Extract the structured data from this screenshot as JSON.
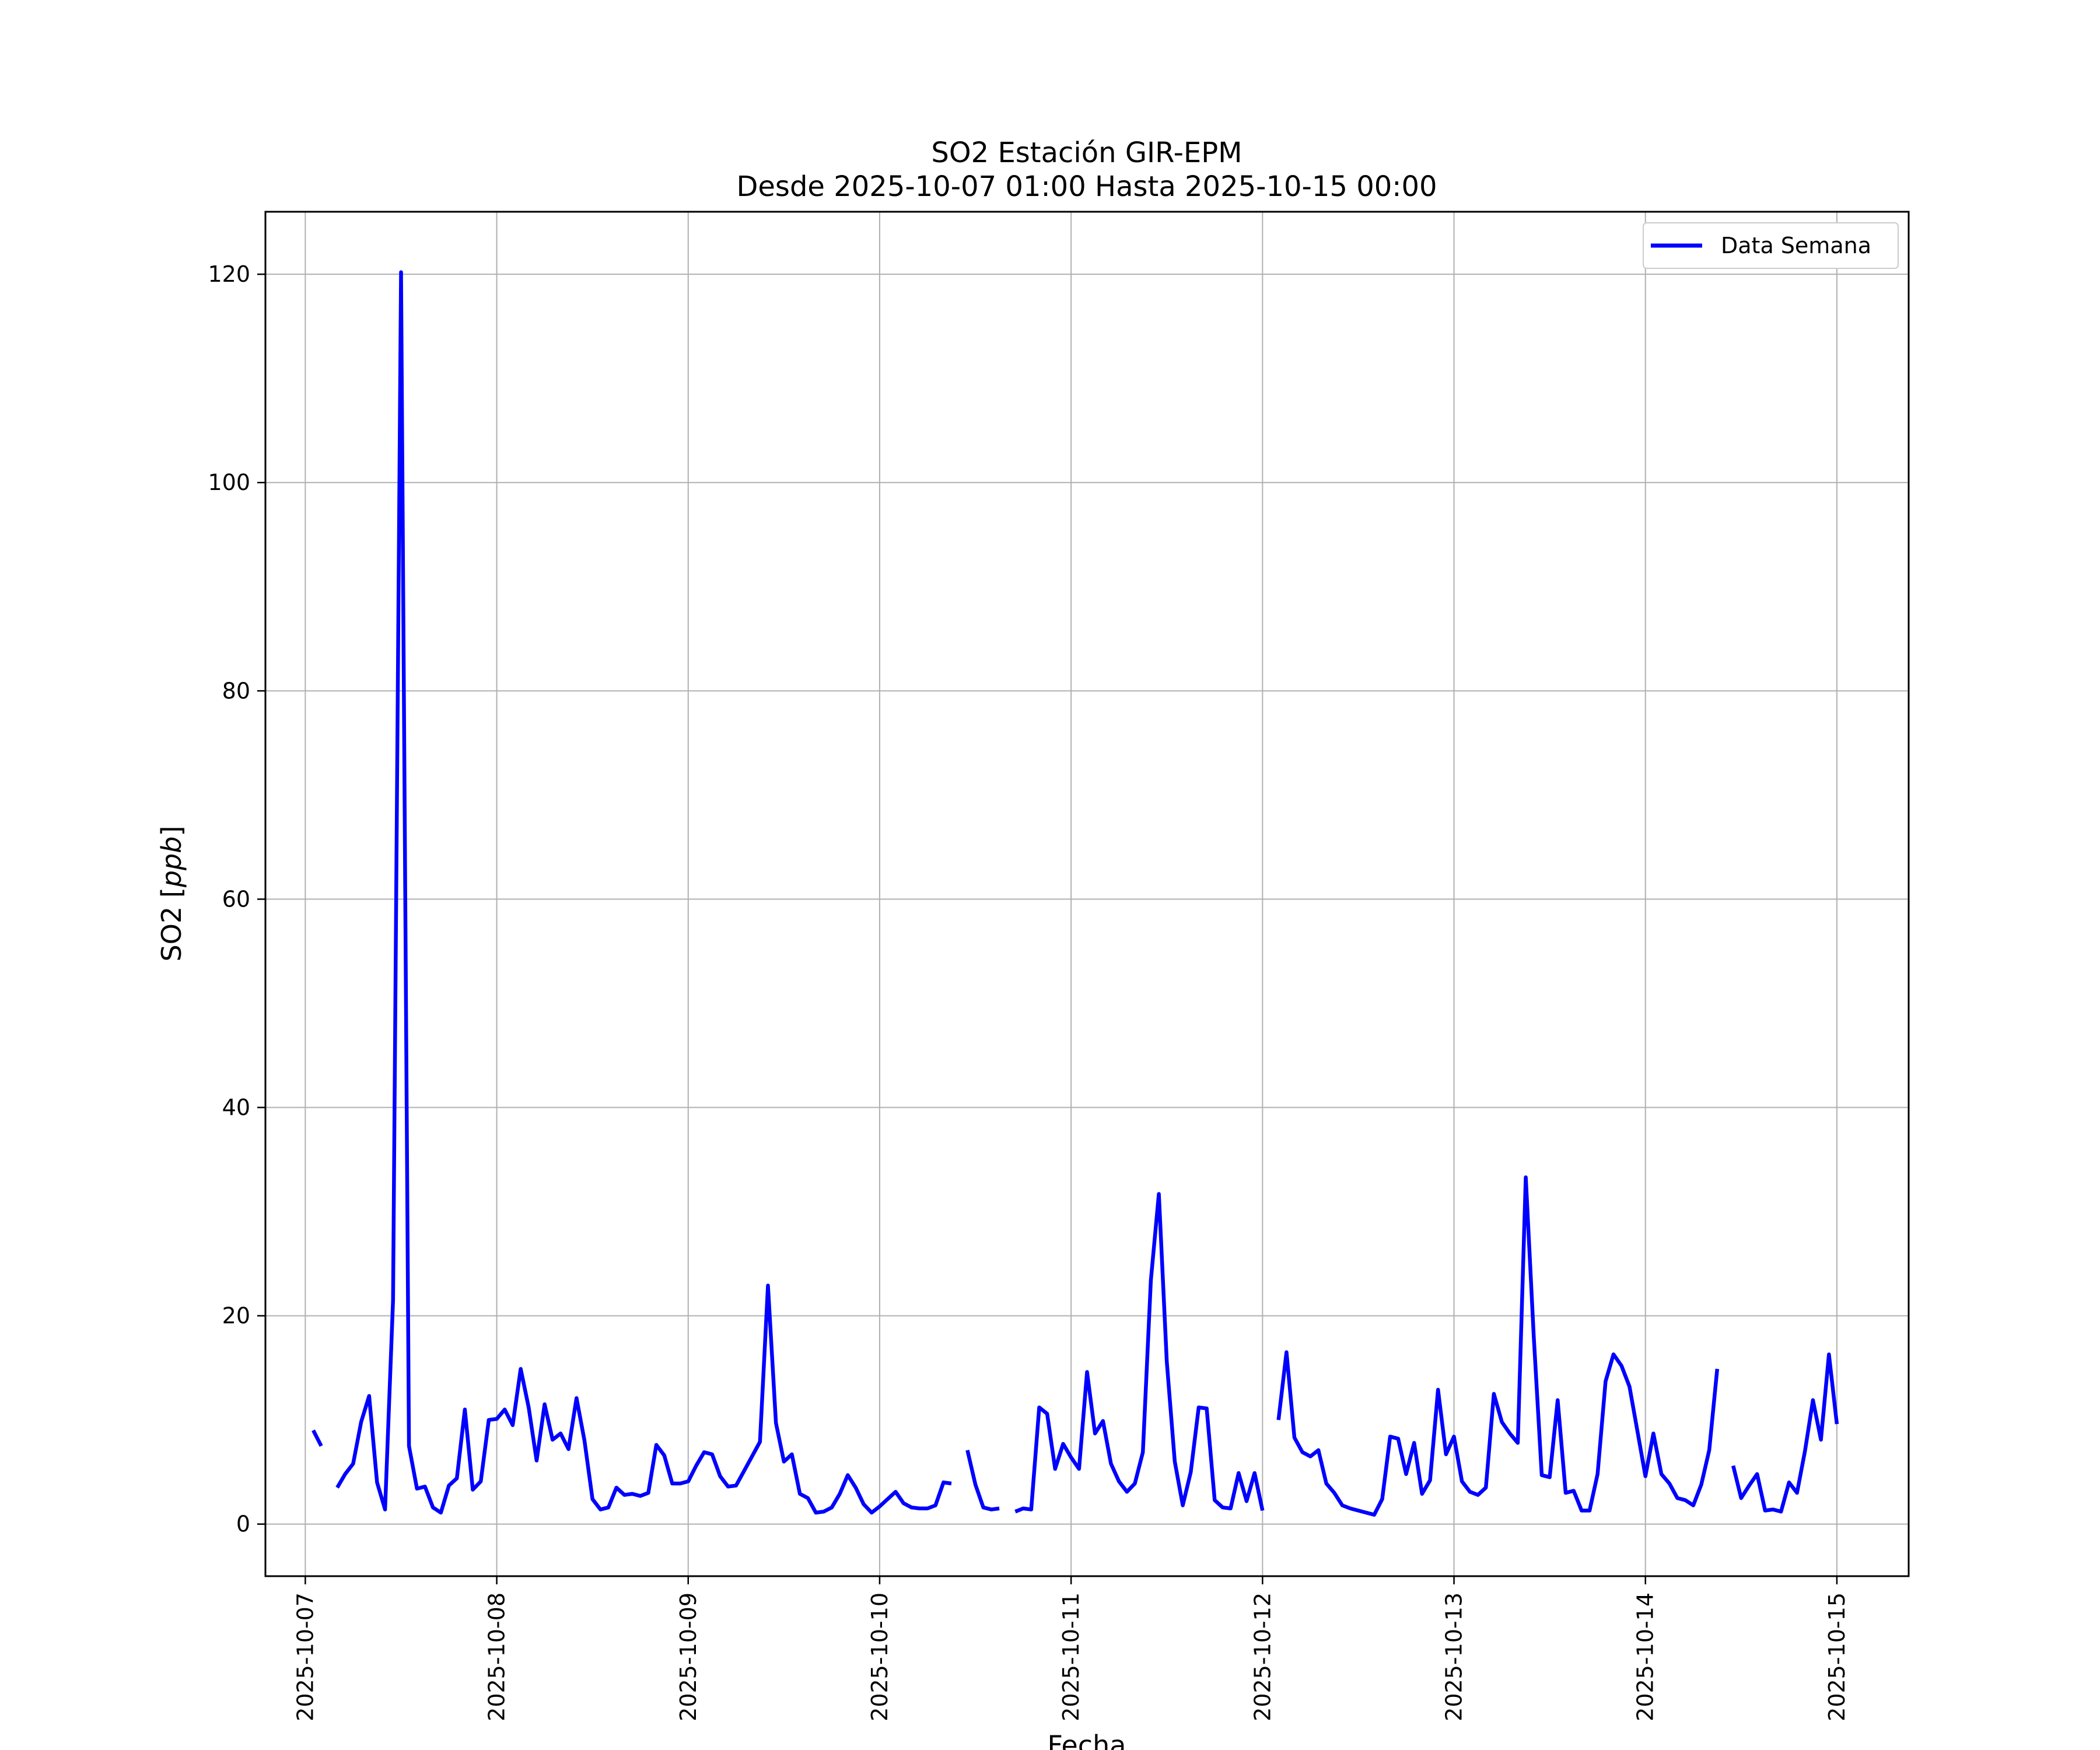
{
  "chart_data": {
    "type": "line",
    "title": "SO2 Estación GIR-EPM",
    "subtitle": "Desde 2025-10-07 01:00 Hasta 2025-10-15 00:00",
    "xlabel": "Fecha",
    "ylabel": "SO2 [ppb]",
    "ylabel_main": "SO2 [",
    "ylabel_unit": "ppb",
    "ylabel_close": "]",
    "x_ticks": [
      "2025-10-07",
      "2025-10-08",
      "2025-10-09",
      "2025-10-10",
      "2025-10-11",
      "2025-10-12",
      "2025-10-13",
      "2025-10-14",
      "2025-10-15"
    ],
    "y_ticks": [
      0,
      20,
      40,
      60,
      80,
      100,
      120
    ],
    "xlim": [
      "2025-10-06 19:00",
      "2025-10-15 09:00"
    ],
    "ylim": [
      -5,
      126
    ],
    "grid": true,
    "legend_position": "top-right",
    "line_color": "#0000ff",
    "series": [
      {
        "name": "Data Semana",
        "start": "2025-10-07 01:00",
        "interval_hours": 1,
        "values": [
          9.0,
          7.5,
          null,
          3.5,
          4.8,
          5.8,
          9.8,
          12.3,
          4.0,
          1.4,
          21.5,
          120.2,
          7.5,
          3.4,
          3.6,
          1.6,
          1.1,
          3.7,
          4.4,
          11.0,
          3.3,
          4.1,
          10.0,
          10.1,
          11.0,
          9.5,
          14.9,
          11.2,
          6.1,
          11.5,
          8.1,
          8.7,
          7.2,
          12.1,
          8.0,
          2.4,
          1.4,
          1.6,
          3.5,
          2.8,
          2.9,
          2.7,
          3.0,
          7.6,
          6.6,
          3.9,
          3.9,
          4.1,
          5.6,
          6.9,
          6.7,
          4.6,
          3.6,
          3.7,
          5.1,
          6.5,
          7.9,
          22.9,
          9.7,
          6.0,
          6.7,
          2.9,
          2.5,
          1.1,
          1.2,
          1.6,
          2.9,
          4.7,
          3.5,
          1.9,
          1.1,
          1.7,
          2.4,
          3.1,
          2.0,
          1.6,
          1.5,
          1.5,
          1.8,
          4.0,
          3.9,
          null,
          7.1,
          3.8,
          1.6,
          1.4,
          1.5,
          null,
          1.2,
          1.5,
          1.4,
          11.2,
          10.6,
          5.3,
          7.7,
          6.4,
          5.3,
          14.6,
          8.7,
          9.9,
          5.8,
          4.1,
          3.1,
          3.9,
          6.9,
          23.4,
          31.7,
          15.6,
          6.0,
          1.8,
          5.0,
          11.2,
          11.1,
          2.3,
          1.6,
          1.5,
          4.9,
          2.2,
          4.9,
          1.3,
          null,
          10.0,
          16.5,
          8.3,
          6.9,
          6.5,
          7.1,
          3.9,
          3.0,
          1.8,
          1.5,
          1.3,
          1.1,
          0.9,
          2.4,
          8.4,
          8.2,
          4.8,
          7.8,
          2.9,
          4.2,
          12.9,
          6.7,
          8.4,
          4.1,
          3.1,
          2.8,
          3.5,
          12.5,
          9.8,
          8.7,
          7.8,
          33.3,
          18.0,
          4.7,
          4.5,
          11.9,
          3.0,
          3.2,
          1.3,
          1.3,
          4.8,
          13.7,
          16.3,
          15.2,
          13.2,
          8.9,
          4.6,
          8.7,
          4.8,
          3.9,
          2.5,
          2.3,
          1.8,
          3.8,
          7.1,
          14.9,
          null,
          5.6,
          2.5,
          3.7,
          4.8,
          1.3,
          1.4,
          1.2,
          4.0,
          3.0,
          7.0,
          11.9,
          8.1,
          16.3,
          9.6
        ]
      }
    ]
  }
}
